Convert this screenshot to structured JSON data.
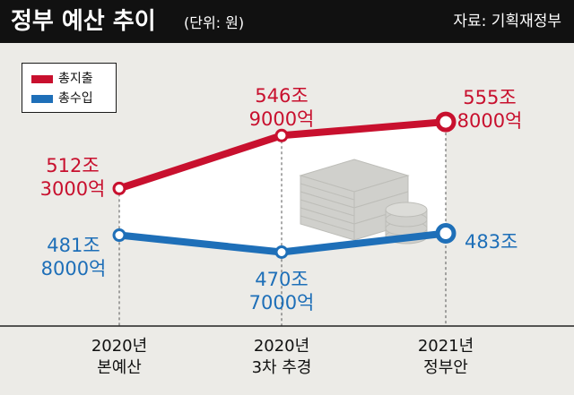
{
  "header": {
    "title": "정부 예산 추이",
    "unit": "(단위: 원)",
    "source": "자료: 기획재정부"
  },
  "colors": {
    "header_bg": "#111111",
    "background": "#ecebe7",
    "expenditure": "#c8102e",
    "revenue": "#1e6fb8",
    "band": "#ffffff",
    "axis": "#222222",
    "guide": "#555555"
  },
  "icons": [
    "money-stack-icon",
    "coin-stack-icon"
  ],
  "chart_data": {
    "type": "line",
    "categories": [
      [
        "2020년",
        "본예산"
      ],
      [
        "2020년",
        "3차 추경"
      ],
      [
        "2021년",
        "정부안"
      ]
    ],
    "grid": false,
    "legend_position": "top-left",
    "series": [
      {
        "name": "총지출",
        "color": "#c8102e",
        "values": [
          512.3,
          546.9,
          555.8
        ],
        "labels": [
          [
            "512조",
            "3000억"
          ],
          [
            "546조",
            "9000억"
          ],
          [
            "555조",
            "8000억"
          ]
        ]
      },
      {
        "name": "총수입",
        "color": "#1e6fb8",
        "values": [
          481.8,
          470.7,
          483.0
        ],
        "labels": [
          [
            "481조",
            "8000억"
          ],
          [
            "470조",
            "7000억"
          ],
          [
            "483조"
          ]
        ]
      }
    ]
  }
}
